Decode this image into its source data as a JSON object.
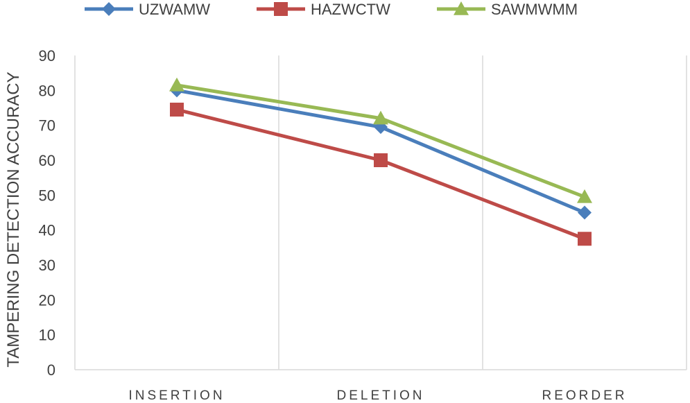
{
  "chart_data": {
    "type": "line",
    "title": "",
    "xlabel": "",
    "ylabel": "TAMPERING DETECTION ACCURACY",
    "categories": [
      "INSERTION",
      "DELETION",
      "REORDER"
    ],
    "ylim": [
      0,
      90
    ],
    "yticks": [
      0,
      10,
      20,
      30,
      40,
      50,
      60,
      70,
      80,
      90
    ],
    "grid": "vertical",
    "legend": "top",
    "series": [
      {
        "name": "UZWAMW",
        "values": [
          80,
          69.5,
          45
        ],
        "color": "#4a7ebb",
        "marker": "diamond"
      },
      {
        "name": "HAZWCTW",
        "values": [
          74.5,
          60,
          37.5
        ],
        "color": "#be4b48",
        "marker": "square"
      },
      {
        "name": "SAWMWMM",
        "values": [
          81.5,
          72,
          49.5
        ],
        "color": "#98b954",
        "marker": "triangle"
      }
    ]
  }
}
